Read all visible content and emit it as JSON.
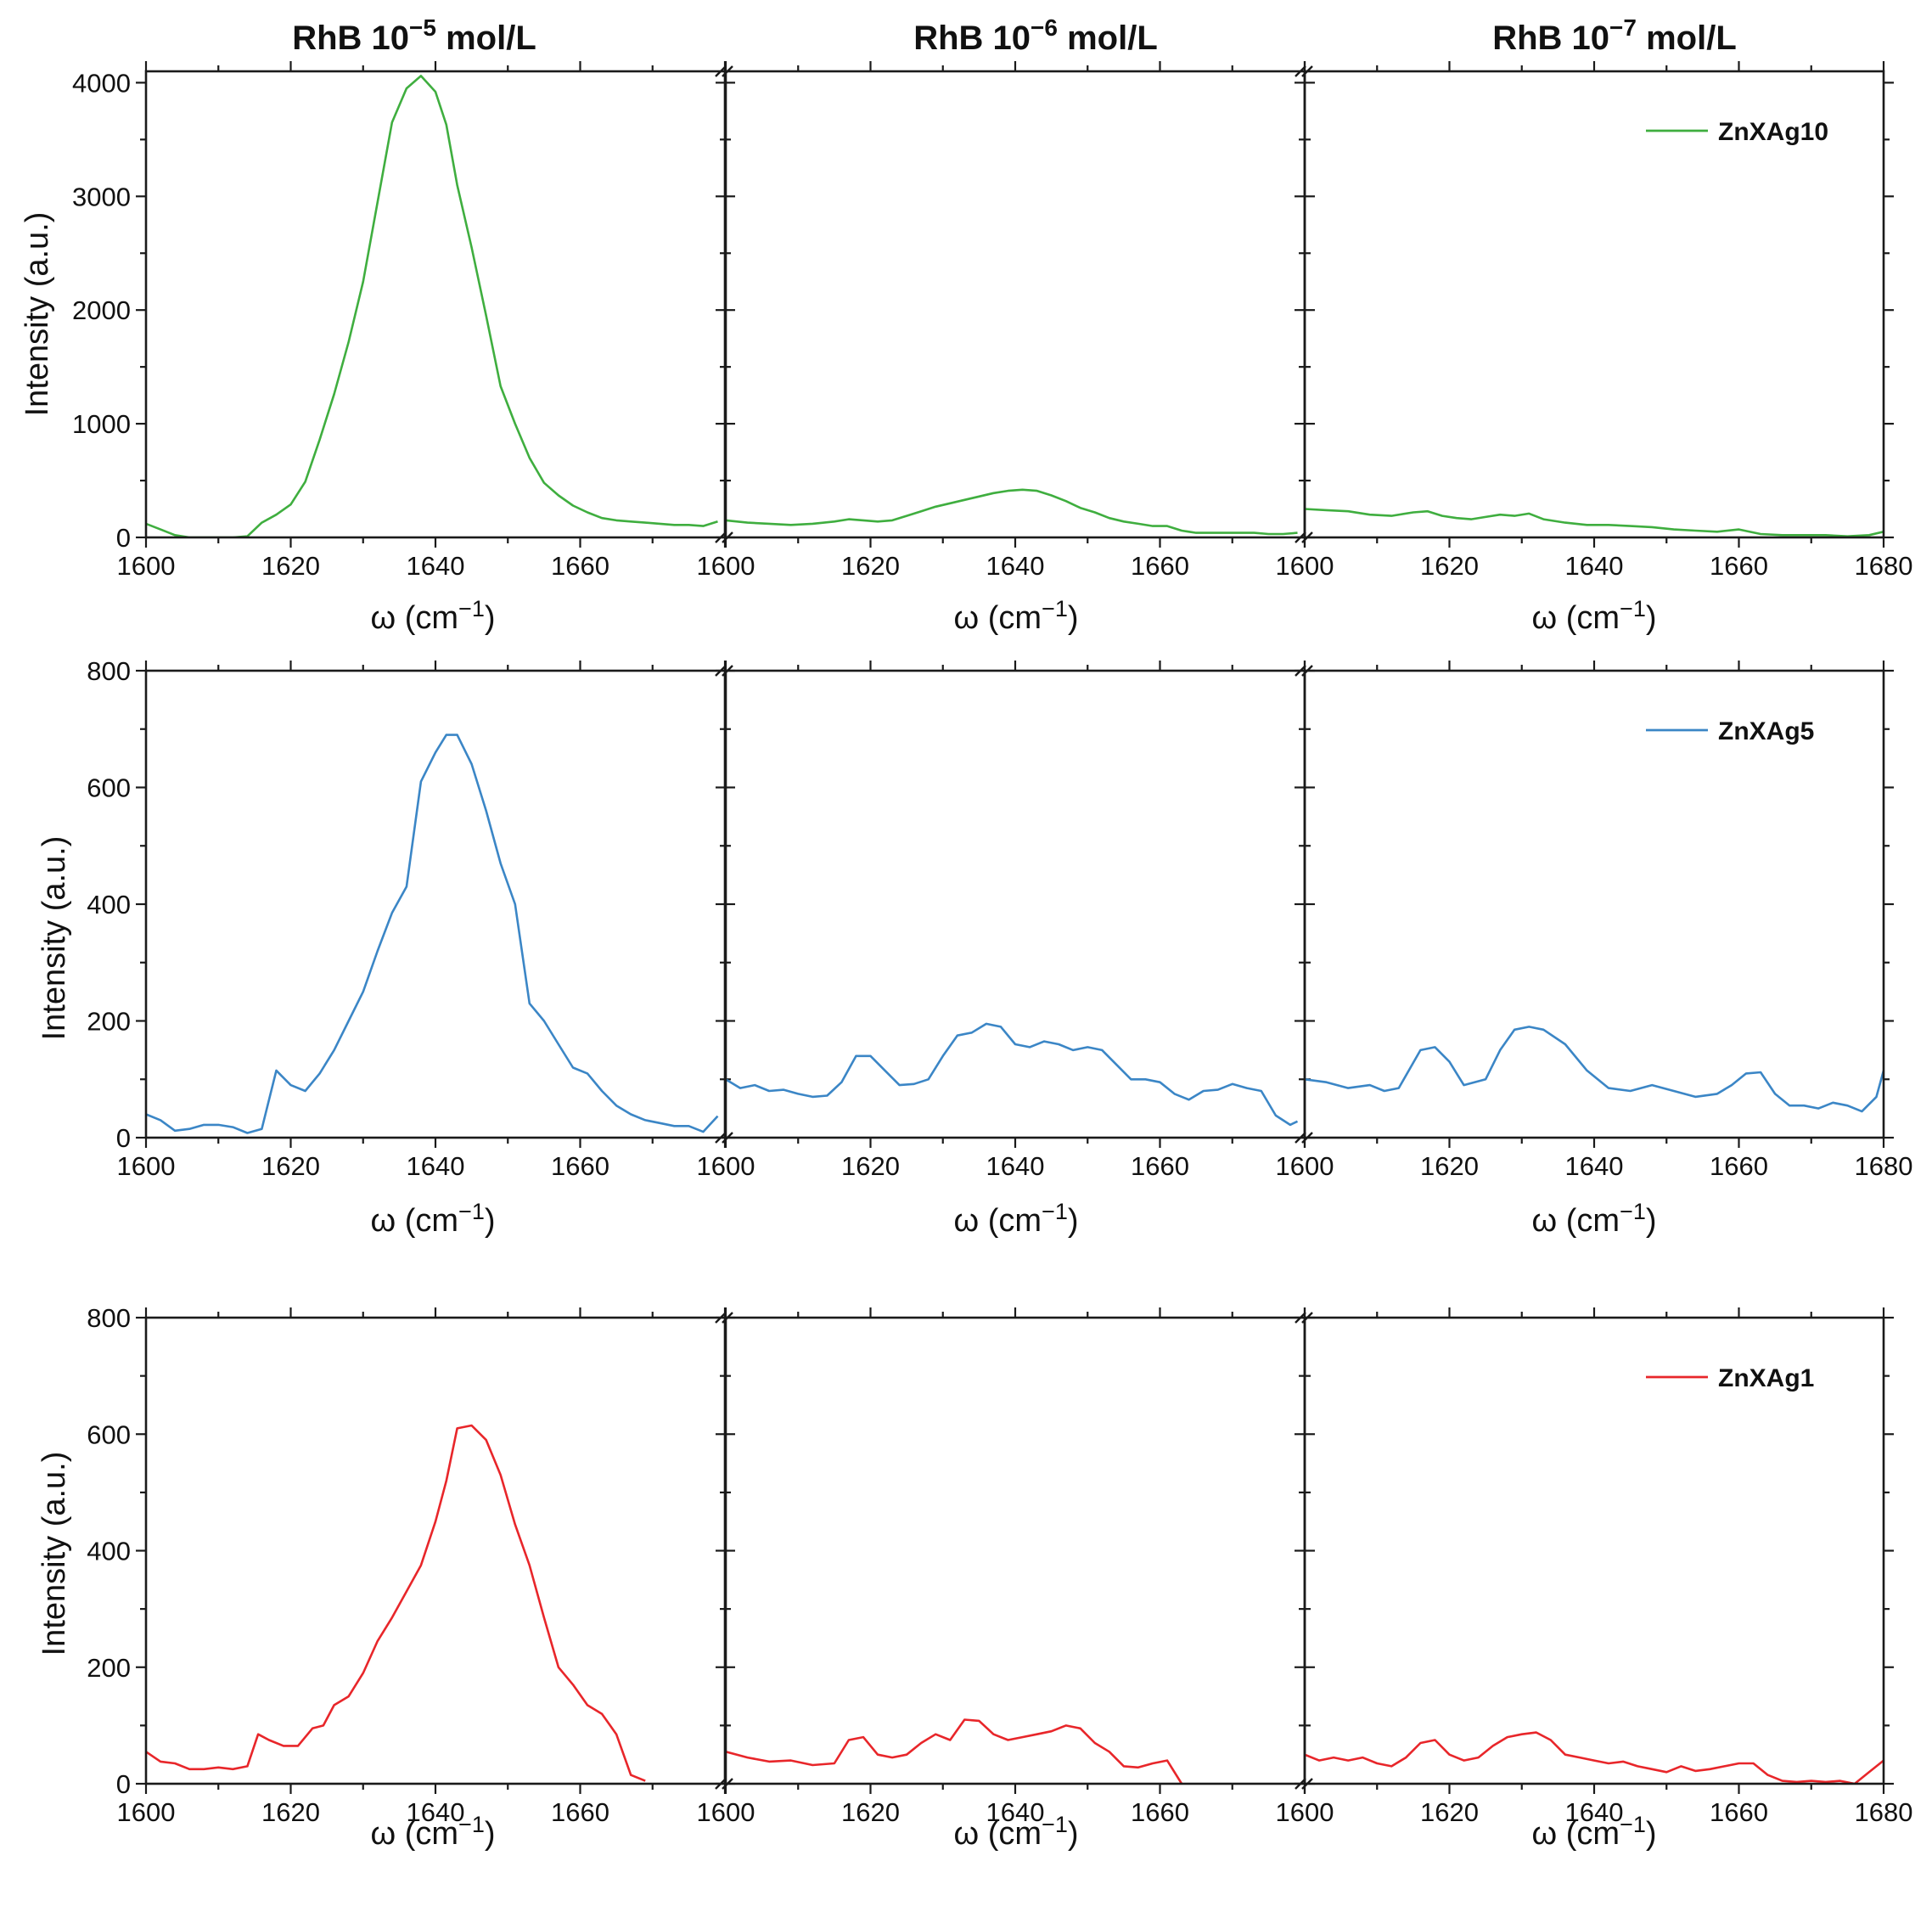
{
  "figure": {
    "column_titles": [
      {
        "prefix": "RhB 10",
        "exponent": "−5",
        "suffix": " mol/L"
      },
      {
        "prefix": "RhB 10",
        "exponent": "−6",
        "suffix": " mol/L"
      },
      {
        "prefix": "RhB 10",
        "exponent": "−7",
        "suffix": " mol/L"
      }
    ],
    "xlabel": {
      "main": "ω (cm",
      "exponent": "−1",
      "close": ")"
    },
    "ylabel": "Intensity (a.u.)",
    "x_ticks": [
      "1600",
      "1620",
      "1640",
      "1660",
      "1680"
    ],
    "x_ticks_broken": [
      "1600",
      "1620",
      "1640",
      "1660"
    ]
  },
  "chart_data": [
    {
      "type": "line",
      "row": 0,
      "series_name": "ZnXAg10",
      "color": "#3fae3f",
      "ylabel": "Intensity (a.u.)",
      "ylim": [
        0,
        4100
      ],
      "yticks": [
        "0",
        "1000",
        "2000",
        "3000",
        "4000"
      ],
      "xlim": [
        1600,
        1680
      ],
      "axis_break": "between panels",
      "panels": [
        {
          "concentration": "RhB 10−5 mol/L",
          "x": [
            1600,
            1602,
            1604,
            1606,
            1608,
            1610,
            1612,
            1614,
            1616,
            1618,
            1620,
            1622,
            1624,
            1626,
            1628,
            1630,
            1632,
            1634,
            1636,
            1638,
            1640,
            1641.5,
            1643,
            1645,
            1647,
            1649,
            1651,
            1653,
            1655,
            1657,
            1659,
            1661,
            1663,
            1665,
            1667,
            1669,
            1671,
            1673,
            1675,
            1677,
            1679
          ],
          "y": [
            120,
            70,
            20,
            0,
            0,
            0,
            0,
            10,
            130,
            200,
            290,
            490,
            860,
            1260,
            1720,
            2250,
            2950,
            3650,
            3950,
            4060,
            3920,
            3630,
            3100,
            2550,
            1950,
            1330,
            1000,
            700,
            480,
            370,
            280,
            220,
            170,
            150,
            140,
            130,
            120,
            110,
            110,
            100,
            140
          ]
        },
        {
          "concentration": "RhB 10−6 mol/L",
          "x": [
            1600,
            1603,
            1606,
            1609,
            1612,
            1615,
            1617,
            1619,
            1621,
            1623,
            1625,
            1627,
            1629,
            1631,
            1633,
            1635,
            1637,
            1639,
            1641,
            1643,
            1645,
            1647,
            1649,
            1651,
            1653,
            1655,
            1657,
            1659,
            1661,
            1663,
            1665,
            1667,
            1669,
            1671,
            1673,
            1675,
            1677,
            1679
          ],
          "y": [
            150,
            130,
            120,
            110,
            120,
            140,
            160,
            150,
            140,
            150,
            190,
            230,
            270,
            300,
            330,
            360,
            390,
            410,
            420,
            410,
            370,
            320,
            260,
            220,
            170,
            140,
            120,
            100,
            100,
            60,
            40,
            40,
            40,
            40,
            40,
            30,
            30,
            40
          ]
        },
        {
          "concentration": "RhB 10−7 mol/L",
          "x": [
            1600,
            1603,
            1606,
            1609,
            1612,
            1615,
            1617,
            1619,
            1621,
            1623,
            1625,
            1627,
            1629,
            1631,
            1633,
            1636,
            1639,
            1642,
            1645,
            1648,
            1651,
            1654,
            1657,
            1660,
            1663,
            1666,
            1669,
            1672,
            1675,
            1678,
            1680
          ],
          "y": [
            250,
            240,
            230,
            200,
            190,
            220,
            230,
            190,
            170,
            160,
            180,
            200,
            190,
            210,
            160,
            130,
            110,
            110,
            100,
            90,
            70,
            60,
            50,
            70,
            30,
            20,
            20,
            20,
            10,
            20,
            50
          ]
        }
      ]
    },
    {
      "type": "line",
      "row": 1,
      "series_name": "ZnXAg5",
      "color": "#3b86c6",
      "ylabel": "Intensity (a.u.)",
      "ylim": [
        0,
        800
      ],
      "yticks": [
        "0",
        "200",
        "400",
        "600",
        "800"
      ],
      "xlim": [
        1600,
        1680
      ],
      "axis_break": "between panels",
      "panels": [
        {
          "concentration": "RhB 10−5 mol/L",
          "x": [
            1600,
            1602,
            1604,
            1606,
            1608,
            1610,
            1612,
            1614,
            1616,
            1618,
            1620,
            1622,
            1624,
            1626,
            1628,
            1630,
            1632,
            1634,
            1636,
            1638,
            1640,
            1641.5,
            1643,
            1645,
            1647,
            1649,
            1651,
            1653,
            1655,
            1657,
            1659,
            1661,
            1663,
            1665,
            1667,
            1669,
            1671,
            1673,
            1675,
            1677,
            1679
          ],
          "y": [
            40,
            30,
            12,
            15,
            22,
            22,
            18,
            8,
            15,
            115,
            90,
            80,
            110,
            150,
            200,
            250,
            320,
            385,
            430,
            610,
            660,
            690,
            690,
            640,
            560,
            470,
            400,
            230,
            200,
            160,
            120,
            110,
            80,
            55,
            40,
            30,
            25,
            20,
            20,
            10,
            37
          ]
        },
        {
          "concentration": "RhB 10−6 mol/L",
          "x": [
            1600,
            1602,
            1604,
            1606,
            1608,
            1610,
            1612,
            1614,
            1616,
            1618,
            1620,
            1622,
            1624,
            1626,
            1628,
            1630,
            1632,
            1634,
            1636,
            1638,
            1640,
            1642,
            1644,
            1646,
            1648,
            1650,
            1652,
            1654,
            1656,
            1658,
            1660,
            1662,
            1664,
            1666,
            1668,
            1670,
            1672,
            1674,
            1676,
            1678,
            1679
          ],
          "y": [
            100,
            85,
            90,
            80,
            82,
            75,
            70,
            72,
            95,
            140,
            140,
            115,
            90,
            92,
            100,
            140,
            175,
            180,
            195,
            190,
            160,
            155,
            165,
            160,
            150,
            155,
            150,
            125,
            100,
            100,
            95,
            75,
            65,
            80,
            82,
            92,
            85,
            80,
            38,
            22,
            28
          ]
        },
        {
          "concentration": "RhB 10−7 mol/L",
          "x": [
            1600,
            1603,
            1606,
            1609,
            1611,
            1613,
            1616,
            1618,
            1620,
            1622,
            1625,
            1627,
            1629,
            1631,
            1633,
            1636,
            1639,
            1642,
            1645,
            1648,
            1651,
            1654,
            1657,
            1659,
            1661,
            1663,
            1665,
            1667,
            1669,
            1671,
            1673,
            1675,
            1677,
            1679,
            1680
          ],
          "y": [
            100,
            95,
            85,
            90,
            80,
            85,
            150,
            155,
            130,
            90,
            100,
            150,
            185,
            190,
            185,
            160,
            115,
            85,
            80,
            90,
            80,
            70,
            75,
            90,
            110,
            112,
            75,
            55,
            55,
            50,
            60,
            55,
            45,
            70,
            115
          ]
        }
      ]
    },
    {
      "type": "line",
      "row": 2,
      "series_name": "ZnXAg1",
      "color": "#e8262a",
      "ylabel": "Intensity (a.u.)",
      "ylim": [
        0,
        800
      ],
      "yticks": [
        "0",
        "200",
        "400",
        "600",
        "800"
      ],
      "xlim": [
        1600,
        1680
      ],
      "axis_break": "between panels",
      "panels": [
        {
          "concentration": "RhB 10−5 mol/L",
          "x": [
            1600,
            1602,
            1604,
            1606,
            1608,
            1610,
            1612,
            1614,
            1615.5,
            1617,
            1619,
            1621,
            1623,
            1624.5,
            1626,
            1628,
            1630,
            1632,
            1634,
            1636,
            1638,
            1640,
            1641.5,
            1643,
            1645,
            1647,
            1649,
            1651,
            1653,
            1655,
            1657,
            1659,
            1661,
            1663,
            1665,
            1667,
            1669
          ],
          "y": [
            55,
            38,
            35,
            25,
            25,
            28,
            25,
            30,
            85,
            75,
            65,
            65,
            95,
            100,
            135,
            150,
            190,
            245,
            285,
            330,
            375,
            450,
            520,
            610,
            615,
            590,
            530,
            445,
            375,
            285,
            200,
            170,
            135,
            120,
            85,
            15,
            5
          ]
        },
        {
          "concentration": "RhB 10−6 mol/L",
          "x": [
            1600,
            1603,
            1606,
            1609,
            1612,
            1615,
            1617,
            1619,
            1621,
            1623,
            1625,
            1627,
            1629,
            1631,
            1633,
            1635,
            1637,
            1639,
            1641,
            1643,
            1645,
            1647,
            1649,
            1651,
            1653,
            1655,
            1657,
            1659,
            1661,
            1663
          ],
          "y": [
            55,
            45,
            38,
            40,
            32,
            35,
            75,
            80,
            50,
            45,
            50,
            70,
            85,
            75,
            110,
            108,
            85,
            75,
            80,
            85,
            90,
            100,
            95,
            70,
            55,
            30,
            28,
            35,
            40,
            0
          ]
        },
        {
          "concentration": "RhB 10−7 mol/L",
          "x": [
            1600,
            1602,
            1604,
            1606,
            1608,
            1610,
            1612,
            1614,
            1616,
            1618,
            1620,
            1622,
            1624,
            1626,
            1628,
            1630,
            1632,
            1634,
            1636,
            1638,
            1640,
            1642,
            1644,
            1646,
            1648,
            1650,
            1652,
            1654,
            1656,
            1658,
            1660,
            1662,
            1664,
            1666,
            1668,
            1670,
            1672,
            1674,
            1676,
            1678,
            1680
          ],
          "y": [
            50,
            40,
            45,
            40,
            45,
            35,
            30,
            45,
            70,
            75,
            50,
            40,
            45,
            65,
            80,
            85,
            88,
            75,
            50,
            45,
            40,
            35,
            38,
            30,
            25,
            20,
            30,
            22,
            25,
            30,
            35,
            35,
            15,
            5,
            3,
            5,
            3,
            5,
            0,
            20,
            40
          ]
        }
      ]
    }
  ]
}
